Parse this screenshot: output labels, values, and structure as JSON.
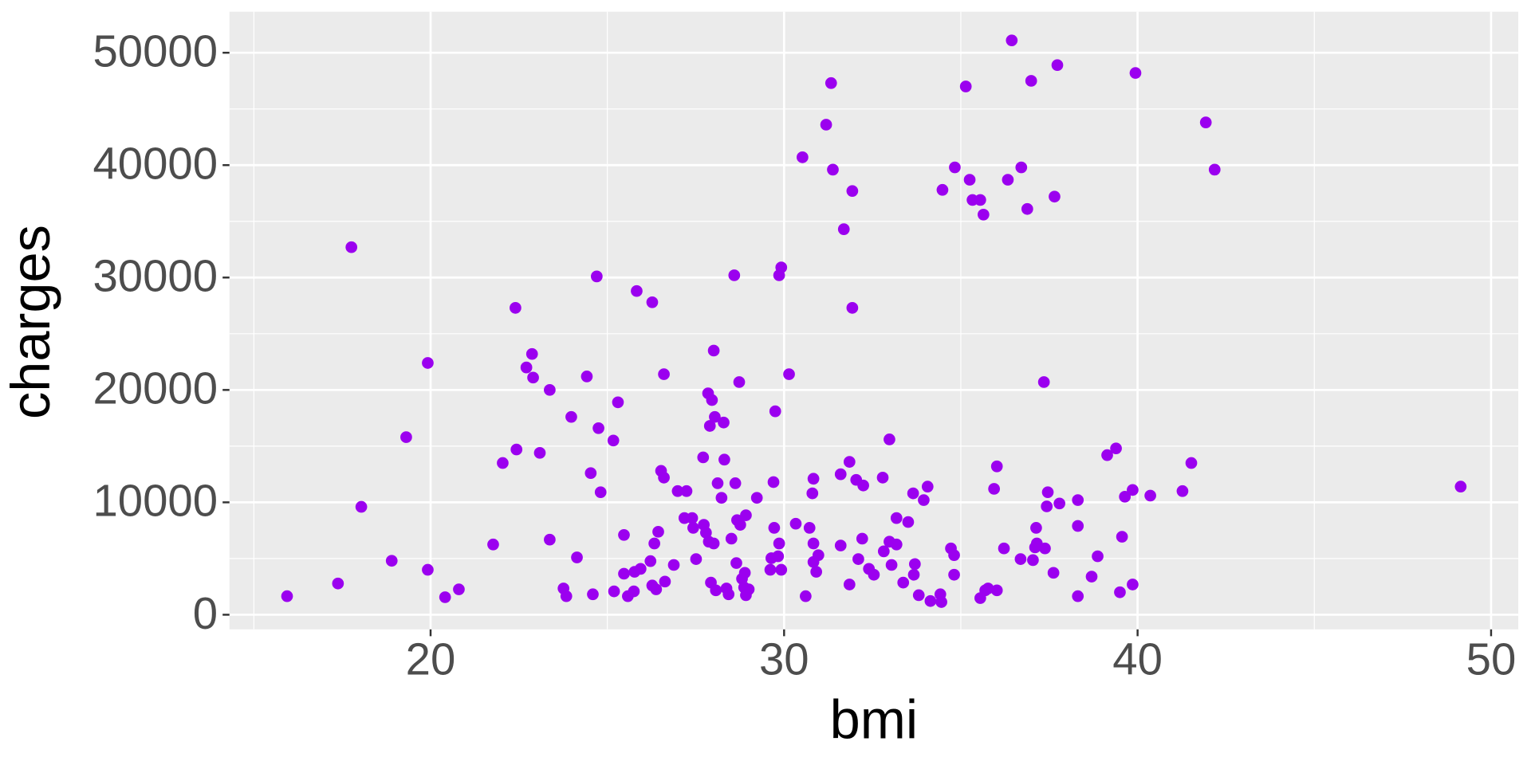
{
  "chart_data": {
    "type": "scatter",
    "xlabel": "bmi",
    "ylabel": "charges",
    "color": "#9b00ef",
    "grid": true,
    "xlim": [
      14.31,
      50.77
    ],
    "ylim": [
      -1302,
      53650
    ],
    "xticks": [
      20,
      30,
      40,
      50
    ],
    "yticks": [
      0,
      10000,
      20000,
      30000,
      40000,
      50000
    ],
    "x": [
      15.94,
      17.38,
      17.76,
      18.04,
      18.9,
      19.31,
      19.92,
      19.92,
      20.41,
      20.8,
      21.77,
      22.04,
      22.4,
      22.43,
      22.71,
      22.87,
      22.9,
      23.09,
      23.37,
      23.37,
      23.76,
      23.84,
      23.98,
      24.14,
      24.42,
      24.53,
      24.59,
      24.7,
      24.75,
      24.81,
      25.17,
      25.19,
      25.3,
      25.47,
      25.47,
      25.58,
      25.75,
      25.83,
      25.77,
      25.94,
      26.22,
      26.27,
      26.27,
      26.33,
      26.38,
      26.44,
      26.52,
      26.6,
      26.6,
      26.63,
      26.88,
      26.99,
      27.24,
      27.18,
      27.4,
      27.43,
      27.51,
      27.71,
      27.73,
      27.79,
      27.85,
      27.87,
      27.9,
      27.96,
      27.93,
      28.01,
      28.01,
      28.04,
      28.07,
      28.12,
      28.23,
      28.29,
      28.31,
      28.37,
      28.43,
      28.51,
      28.59,
      28.62,
      28.65,
      28.67,
      28.73,
      28.76,
      28.81,
      28.87,
      28.89,
      28.92,
      28.92,
      29.0,
      29.23,
      29.61,
      29.64,
      29.7,
      29.72,
      29.75,
      29.83,
      29.86,
      29.86,
      29.92,
      29.92,
      30.14,
      30.33,
      30.52,
      30.61,
      30.72,
      30.8,
      30.83,
      30.83,
      30.83,
      30.91,
      30.97,
      31.19,
      31.33,
      31.38,
      31.6,
      31.6,
      31.69,
      31.85,
      31.85,
      31.93,
      31.93,
      32.04,
      32.1,
      32.21,
      32.24,
      32.4,
      32.54,
      32.79,
      32.82,
      32.98,
      32.98,
      33.04,
      33.18,
      33.18,
      33.37,
      33.51,
      33.65,
      33.67,
      33.7,
      33.81,
      33.95,
      34.06,
      34.14,
      34.42,
      34.45,
      34.48,
      34.72,
      34.81,
      34.81,
      34.83,
      35.14,
      35.25,
      35.33,
      35.55,
      35.55,
      35.64,
      35.69,
      35.77,
      35.94,
      36.02,
      36.02,
      36.22,
      36.33,
      36.44,
      36.69,
      36.71,
      36.88,
      36.99,
      37.04,
      37.1,
      37.13,
      37.15,
      37.35,
      37.38,
      37.43,
      37.46,
      37.62,
      37.65,
      37.73,
      37.79,
      38.31,
      38.31,
      38.31,
      38.7,
      38.87,
      39.14,
      39.39,
      39.5,
      39.56,
      39.64,
      39.86,
      39.86,
      39.94,
      40.36,
      41.27,
      41.52,
      41.93,
      42.18,
      49.14
    ],
    "values": [
      1650,
      2780,
      32700,
      9600,
      4800,
      15800,
      22400,
      4000,
      1560,
      2260,
      6250,
      13500,
      27300,
      14700,
      22000,
      23200,
      21100,
      14400,
      20000,
      6680,
      2340,
      1650,
      17600,
      5100,
      21200,
      12600,
      1820,
      30100,
      16600,
      10900,
      15500,
      2080,
      18900,
      7100,
      3650,
      1650,
      2080,
      28800,
      3820,
      4080,
      4770,
      27800,
      2600,
      6340,
      2260,
      7380,
      12800,
      12200,
      21400,
      2950,
      4430,
      11000,
      11000,
      8600,
      8600,
      7730,
      4950,
      14000,
      8000,
      7300,
      19700,
      6500,
      16800,
      19100,
      2860,
      6340,
      23500,
      17600,
      2170,
      11700,
      10400,
      17100,
      13800,
      2340,
      1820,
      6770,
      30200,
      11700,
      4600,
      8420,
      20700,
      8000,
      3200,
      2430,
      3730,
      8850,
      1740,
      2260,
      10400,
      4000,
      5030,
      11800,
      7730,
      18100,
      5200,
      6340,
      30200,
      30900,
      4000,
      21400,
      8100,
      40700,
      1650,
      7730,
      10800,
      12100,
      6340,
      4690,
      3820,
      5300,
      43600,
      47300,
      39600,
      6160,
      12500,
      34300,
      13600,
      2690,
      37700,
      27300,
      12000,
      4950,
      6770,
      11500,
      4080,
      3560,
      12200,
      5640,
      15600,
      6500,
      4430,
      8600,
      6250,
      2860,
      8250,
      10800,
      3560,
      4510,
      1740,
      10200,
      11400,
      1220,
      1820,
      1130,
      37800,
      5900,
      5300,
      3560,
      39800,
      47000,
      38700,
      36900,
      36900,
      1480,
      35600,
      2170,
      2340,
      11200,
      2170,
      13200,
      5900,
      38700,
      51100,
      4950,
      39800,
      36100,
      47500,
      4860,
      5990,
      7730,
      6340,
      20700,
      5900,
      9640,
      10900,
      3730,
      37200,
      48900,
      9900,
      10200,
      7900,
      1650,
      3390,
      5200,
      14200,
      14800,
      2000,
      6940,
      10500,
      2690,
      11100,
      48200,
      10600,
      11000,
      13500,
      43800,
      39600,
      11400
    ]
  }
}
